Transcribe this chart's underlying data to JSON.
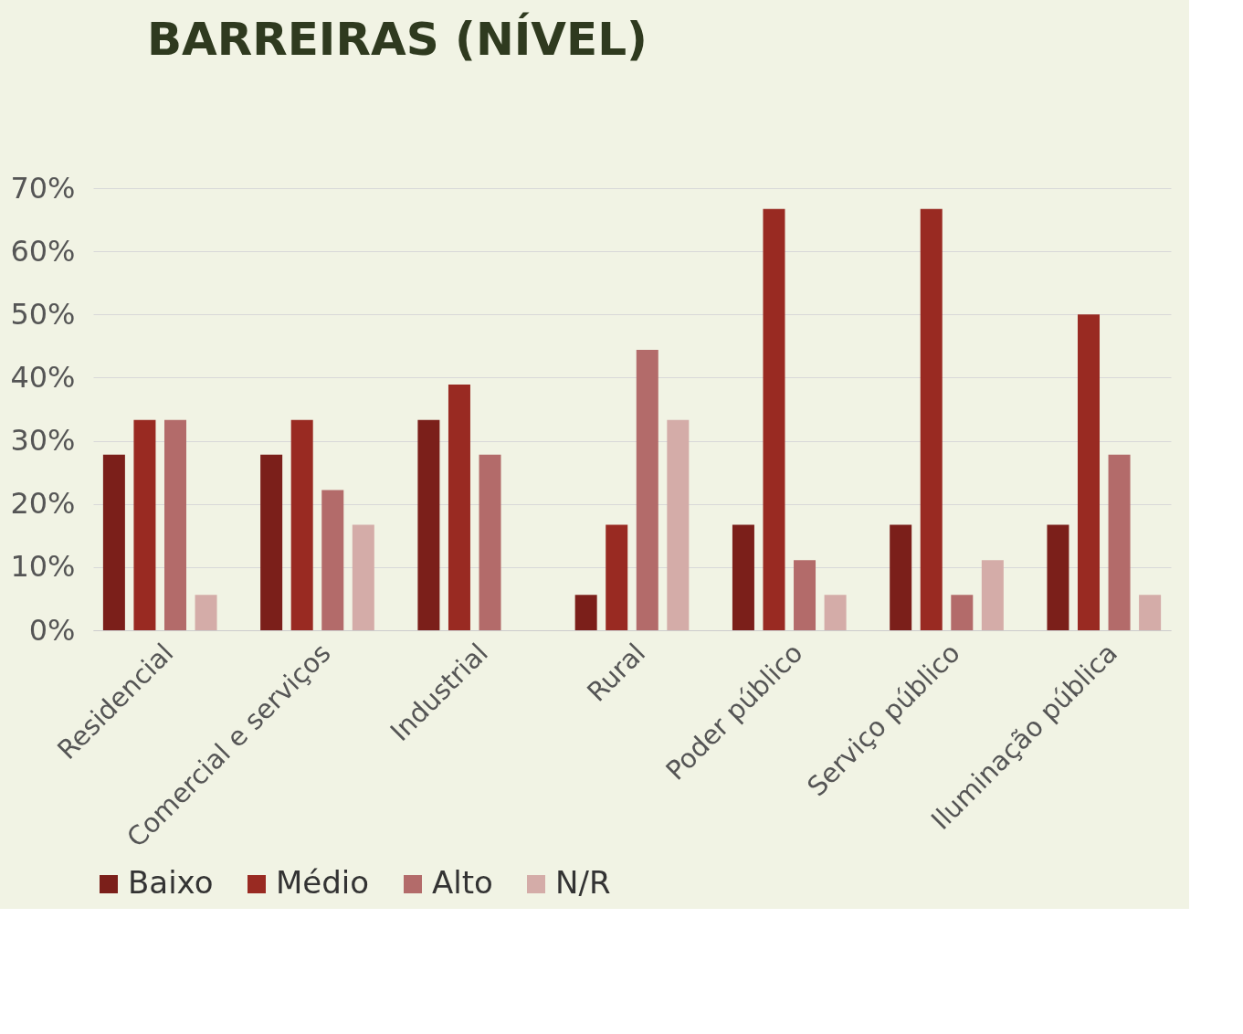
{
  "chart_data": {
    "type": "bar",
    "title": "BARREIRAS (NÍVEL)",
    "categories": [
      "Residencial",
      "Comercial e serviços",
      "Industrial",
      "Rural",
      "Poder público",
      "Serviço público",
      "Iluminação pública"
    ],
    "series": [
      {
        "name": "Baixo",
        "color": "#7b1f1a",
        "values": [
          27.8,
          27.8,
          33.3,
          5.6,
          16.7,
          16.7,
          16.7
        ]
      },
      {
        "name": "Médio",
        "color": "#992a22",
        "values": [
          33.3,
          33.3,
          38.9,
          16.7,
          66.7,
          66.7,
          50
        ]
      },
      {
        "name": "Alto",
        "color": "#b36b6a",
        "values": [
          33.3,
          22.2,
          27.8,
          44.4,
          11.1,
          5.6,
          27.8
        ]
      },
      {
        "name": "N/R",
        "color": "#d4aca8",
        "values": [
          5.6,
          16.7,
          null,
          33.3,
          5.6,
          11.1,
          5.6
        ]
      }
    ],
    "ylim": [
      0,
      70
    ],
    "yticks": [
      {
        "value": 0,
        "label": "0%"
      },
      {
        "value": 10,
        "label": "10%"
      },
      {
        "value": 20,
        "label": "20%"
      },
      {
        "value": 30,
        "label": "30%"
      },
      {
        "value": 40,
        "label": "40%"
      },
      {
        "value": 50,
        "label": "50%"
      },
      {
        "value": 60,
        "label": "60%"
      },
      {
        "value": 70,
        "label": "70%"
      }
    ],
    "grid": "y",
    "legend": "bottom"
  }
}
